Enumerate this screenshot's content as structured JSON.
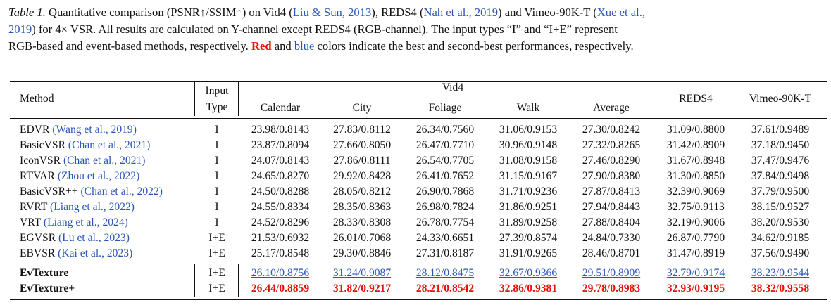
{
  "caption": {
    "label": "Table 1.",
    "part1": " Quantitative comparison (PSNR↑/SSIM↑) on Vid4 (",
    "cite1": "Liu & Sun, 2013",
    "part2": "), REDS4 (",
    "cite2": "Nah et al., 2019",
    "part3": ") and Vimeo-90K-T (",
    "cite3a": "Xue et al.,",
    "cite3b": "2019",
    "part4": ") for 4× VSR. All results are calculated on Y-channel except REDS4 (RGB-channel). The input types “I” and “I+E” represent",
    "part5": "RGB-based and event-based methods, respectively. ",
    "red_word": "Red",
    "part6": " and ",
    "blue_word": "blue",
    "part7": " colors indicate the best and second-best performances, respectively."
  },
  "header": {
    "method": "Method",
    "input": "Input",
    "type": "Type",
    "vid4": "Vid4",
    "calendar": "Calendar",
    "city": "City",
    "foliage": "Foliage",
    "walk": "Walk",
    "average": "Average",
    "reds4": "REDS4",
    "vimeo": "Vimeo-90K-T"
  },
  "rows": [
    {
      "name": "EDVR ",
      "cite": "(Wang et al., 2019)",
      "type": "I",
      "vals": [
        "23.98/0.8143",
        "27.83/0.8112",
        "26.34/0.7560",
        "31.06/0.9153",
        "27.30/0.8242",
        "31.09/0.8800",
        "37.61/0.9489"
      ]
    },
    {
      "name": "BasicVSR ",
      "cite": "(Chan et al., 2021)",
      "type": "I",
      "vals": [
        "23.87/0.8094",
        "27.66/0.8050",
        "26.47/0.7710",
        "30.96/0.9148",
        "27.32/0.8265",
        "31.42/0.8909",
        "37.18/0.9450"
      ]
    },
    {
      "name": "IconVSR ",
      "cite": "(Chan et al., 2021)",
      "type": "I",
      "vals": [
        "24.07/0.8143",
        "27.86/0.8111",
        "26.54/0.7705",
        "31.08/0.9158",
        "27.46/0.8290",
        "31.67/0.8948",
        "37.47/0.9476"
      ]
    },
    {
      "name": "RTVAR ",
      "cite": "(Zhou et al., 2022)",
      "type": "I",
      "vals": [
        "24.65/0.8270",
        "29.92/0.8428",
        "26.41/0.7652",
        "31.15/0.9167",
        "27.90/0.8380",
        "31.30/0.8850",
        "37.84/0.9498"
      ]
    },
    {
      "name": "BasicVSR++ ",
      "cite": "(Chan et al., 2022)",
      "type": "I",
      "vals": [
        "24.50/0.8288",
        "28.05/0.8212",
        "26.90/0.7868",
        "31.71/0.9236",
        "27.87/0.8413",
        "32.39/0.9069",
        "37.79/0.9500"
      ]
    },
    {
      "name": "RVRT ",
      "cite": "(Liang et al., 2022)",
      "type": "I",
      "vals": [
        "24.55/0.8334",
        "28.35/0.8363",
        "26.98/0.7824",
        "31.86/0.9251",
        "27.94/0.8443",
        "32.75/0.9113",
        "38.15/0.9527"
      ]
    },
    {
      "name": "VRT ",
      "cite": "(Liang et al., 2024)",
      "type": "I",
      "vals": [
        "24.52/0.8296",
        "28.33/0.8308",
        "26.78/0.7754",
        "31.89/0.9258",
        "27.88/0.8404",
        "32.19/0.9006",
        "38.20/0.9530"
      ]
    },
    {
      "name": "EGVSR ",
      "cite": "(Lu et al., 2023)",
      "type": "I+E",
      "vals": [
        "21.53/0.6932",
        "26.01/0.7068",
        "24.33/0.6651",
        "27.39/0.8574",
        "24.84/0.7330",
        "26.87/0.7790",
        "34.62/0.9185"
      ]
    },
    {
      "name": "EBVSR ",
      "cite": "(Kai et al., 2023)",
      "type": "I+E",
      "vals": [
        "25.17/0.8548",
        "29.30/0.8846",
        "27.31/0.8187",
        "31.91/0.9265",
        "28.46/0.8701",
        "31.47/0.8919",
        "37.56/0.9490"
      ]
    }
  ],
  "ours": [
    {
      "name": "EvTexture",
      "type": "I+E",
      "rank": "second",
      "vals": [
        "26.10/0.8756",
        "31.24/0.9087",
        "28.12/0.8475",
        "32.67/0.9366",
        "29.51/0.8909",
        "32.79/0.9174",
        "38.23/0.9544"
      ]
    },
    {
      "name": "EvTexture+",
      "type": "I+E",
      "rank": "best",
      "vals": [
        "26.44/0.8859",
        "31.82/0.9217",
        "28.21/0.8542",
        "32.86/0.9381",
        "29.78/0.8983",
        "32.93/0.9195",
        "38.32/0.9558"
      ]
    }
  ],
  "colors": {
    "best": "#e3120b",
    "second": "#2b55b8",
    "cite": "#2b55b8"
  }
}
